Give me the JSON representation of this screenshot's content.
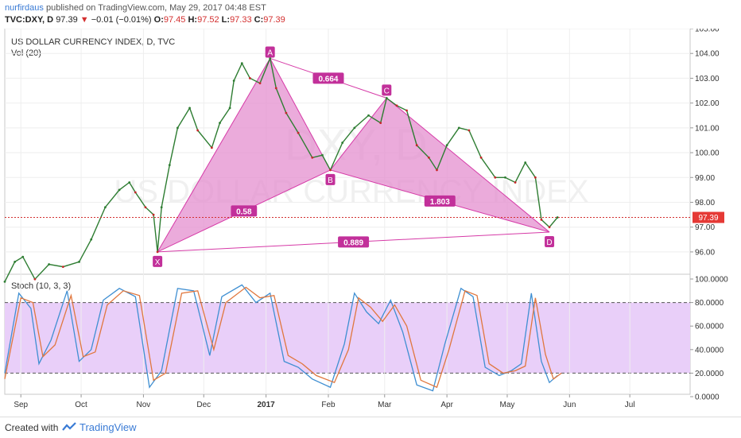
{
  "header": {
    "author": "nurfirdaus",
    "published": "published on TradingView.com, May 29, 2017 04:48 EST",
    "symbol": "TVC:DXY, D",
    "price": "97.39",
    "change": "−0.01 (−0.01%)",
    "open_label": "O:",
    "open": "97.45",
    "high_label": "H:",
    "high": "97.52",
    "low_label": "L:",
    "low": "97.33",
    "close_label": "C:",
    "close": "97.39"
  },
  "footer": {
    "created": "Created with",
    "brand": "TradingView"
  },
  "chart_data": {
    "type": "line",
    "title": "US DOLLAR CURRENCY INDEX, D, TVC",
    "volume_label": "Vol (20)",
    "watermark_symbol": "DXY, D",
    "watermark_name": "US DOLLAR CURRENCY INDEX",
    "current_price": "97.39",
    "price_axis": {
      "range": [
        95.1,
        105.0
      ],
      "ticks": [
        "105.00",
        "104.00",
        "103.00",
        "102.00",
        "101.00",
        "100.00",
        "99.00",
        "98.00",
        "97.00",
        "96.00"
      ]
    },
    "time_axis": {
      "start": "2016-08-24",
      "end": "2017-07-31",
      "ticks": [
        {
          "date": "2016-09-01",
          "label": "Sep"
        },
        {
          "date": "2016-10-01",
          "label": "Oct"
        },
        {
          "date": "2016-11-01",
          "label": "Nov"
        },
        {
          "date": "2016-12-01",
          "label": "Dec"
        },
        {
          "date": "2017-01-01",
          "label": "2017"
        },
        {
          "date": "2017-02-01",
          "label": "Feb"
        },
        {
          "date": "2017-03-01",
          "label": "Mar"
        },
        {
          "date": "2017-04-01",
          "label": "Apr"
        },
        {
          "date": "2017-05-01",
          "label": "May"
        },
        {
          "date": "2017-06-01",
          "label": "Jun"
        },
        {
          "date": "2017-07-01",
          "label": "Jul"
        }
      ]
    },
    "price_path": [
      {
        "date": "2016-08-24",
        "value": 94.8
      },
      {
        "date": "2016-08-29",
        "value": 95.6
      },
      {
        "date": "2016-09-02",
        "value": 95.8
      },
      {
        "date": "2016-09-08",
        "value": 94.9
      },
      {
        "date": "2016-09-15",
        "value": 95.5
      },
      {
        "date": "2016-09-22",
        "value": 95.4
      },
      {
        "date": "2016-09-30",
        "value": 95.6
      },
      {
        "date": "2016-10-06",
        "value": 96.5
      },
      {
        "date": "2016-10-13",
        "value": 97.8
      },
      {
        "date": "2016-10-20",
        "value": 98.5
      },
      {
        "date": "2016-10-25",
        "value": 98.8
      },
      {
        "date": "2016-10-28",
        "value": 98.4
      },
      {
        "date": "2016-11-02",
        "value": 97.8
      },
      {
        "date": "2016-11-06",
        "value": 97.5
      },
      {
        "date": "2016-11-08",
        "value": 96.0
      },
      {
        "date": "2016-11-10",
        "value": 97.8
      },
      {
        "date": "2016-11-14",
        "value": 99.5
      },
      {
        "date": "2016-11-18",
        "value": 101.0
      },
      {
        "date": "2016-11-24",
        "value": 101.8
      },
      {
        "date": "2016-11-28",
        "value": 100.9
      },
      {
        "date": "2016-12-05",
        "value": 100.2
      },
      {
        "date": "2016-12-09",
        "value": 101.2
      },
      {
        "date": "2016-12-14",
        "value": 101.8
      },
      {
        "date": "2016-12-16",
        "value": 102.9
      },
      {
        "date": "2016-12-20",
        "value": 103.6
      },
      {
        "date": "2016-12-24",
        "value": 103.0
      },
      {
        "date": "2016-12-29",
        "value": 102.8
      },
      {
        "date": "2017-01-03",
        "value": 103.8
      },
      {
        "date": "2017-01-06",
        "value": 102.6
      },
      {
        "date": "2017-01-11",
        "value": 101.6
      },
      {
        "date": "2017-01-17",
        "value": 100.8
      },
      {
        "date": "2017-01-24",
        "value": 99.8
      },
      {
        "date": "2017-01-29",
        "value": 99.9
      },
      {
        "date": "2017-02-02",
        "value": 99.3
      },
      {
        "date": "2017-02-08",
        "value": 100.4
      },
      {
        "date": "2017-02-14",
        "value": 101.0
      },
      {
        "date": "2017-02-21",
        "value": 101.5
      },
      {
        "date": "2017-02-27",
        "value": 101.2
      },
      {
        "date": "2017-03-02",
        "value": 102.2
      },
      {
        "date": "2017-03-07",
        "value": 101.9
      },
      {
        "date": "2017-03-12",
        "value": 101.7
      },
      {
        "date": "2017-03-17",
        "value": 100.3
      },
      {
        "date": "2017-03-23",
        "value": 99.8
      },
      {
        "date": "2017-03-27",
        "value": 99.3
      },
      {
        "date": "2017-04-01",
        "value": 100.3
      },
      {
        "date": "2017-04-07",
        "value": 101.0
      },
      {
        "date": "2017-04-12",
        "value": 100.9
      },
      {
        "date": "2017-04-18",
        "value": 99.8
      },
      {
        "date": "2017-04-25",
        "value": 99.0
      },
      {
        "date": "2017-04-30",
        "value": 99.0
      },
      {
        "date": "2017-05-05",
        "value": 98.8
      },
      {
        "date": "2017-05-10",
        "value": 99.6
      },
      {
        "date": "2017-05-15",
        "value": 99.0
      },
      {
        "date": "2017-05-18",
        "value": 97.3
      },
      {
        "date": "2017-05-22",
        "value": 97.0
      },
      {
        "date": "2017-05-26",
        "value": 97.39
      }
    ],
    "xabcd_pattern": {
      "points": [
        {
          "label": "X",
          "date": "2016-11-08",
          "value": 96.0
        },
        {
          "label": "A",
          "date": "2017-01-03",
          "value": 103.8
        },
        {
          "label": "B",
          "date": "2017-02-02",
          "value": 99.3
        },
        {
          "label": "C",
          "date": "2017-03-02",
          "value": 102.2
        },
        {
          "label": "D",
          "date": "2017-05-22",
          "value": 96.8
        }
      ],
      "ratios": [
        {
          "between": [
            "X",
            "B"
          ],
          "value": "0.58"
        },
        {
          "between": [
            "A",
            "C"
          ],
          "value": "0.664"
        },
        {
          "between": [
            "B",
            "D"
          ],
          "value": "1.803"
        },
        {
          "between": [
            "X",
            "D"
          ],
          "value": "0.889"
        }
      ]
    },
    "stochastic": {
      "label": "Stoch (10, 3, 3)",
      "range": [
        0,
        100
      ],
      "upper_band": 80,
      "lower_band": 20,
      "ticks": [
        "100.0000",
        "80.0000",
        "60.0000",
        "40.0000",
        "20.0000",
        "0.0000"
      ],
      "series": [
        {
          "key": "k",
          "color": "#3f8fd2",
          "values": [
            {
              "date": "2016-08-24",
              "value": 20
            },
            {
              "date": "2016-08-31",
              "value": 88
            },
            {
              "date": "2016-09-06",
              "value": 75
            },
            {
              "date": "2016-09-10",
              "value": 28
            },
            {
              "date": "2016-09-16",
              "value": 48
            },
            {
              "date": "2016-09-24",
              "value": 90
            },
            {
              "date": "2016-09-30",
              "value": 30
            },
            {
              "date": "2016-10-06",
              "value": 40
            },
            {
              "date": "2016-10-12",
              "value": 82
            },
            {
              "date": "2016-10-20",
              "value": 92
            },
            {
              "date": "2016-10-28",
              "value": 85
            },
            {
              "date": "2016-11-04",
              "value": 8
            },
            {
              "date": "2016-11-10",
              "value": 22
            },
            {
              "date": "2016-11-18",
              "value": 92
            },
            {
              "date": "2016-11-26",
              "value": 90
            },
            {
              "date": "2016-12-04",
              "value": 35
            },
            {
              "date": "2016-12-10",
              "value": 85
            },
            {
              "date": "2016-12-20",
              "value": 95
            },
            {
              "date": "2016-12-27",
              "value": 80
            },
            {
              "date": "2017-01-03",
              "value": 88
            },
            {
              "date": "2017-01-10",
              "value": 30
            },
            {
              "date": "2017-01-17",
              "value": 25
            },
            {
              "date": "2017-01-24",
              "value": 15
            },
            {
              "date": "2017-02-02",
              "value": 8
            },
            {
              "date": "2017-02-09",
              "value": 45
            },
            {
              "date": "2017-02-14",
              "value": 88
            },
            {
              "date": "2017-02-20",
              "value": 72
            },
            {
              "date": "2017-02-26",
              "value": 62
            },
            {
              "date": "2017-03-04",
              "value": 82
            },
            {
              "date": "2017-03-10",
              "value": 55
            },
            {
              "date": "2017-03-17",
              "value": 10
            },
            {
              "date": "2017-03-25",
              "value": 5
            },
            {
              "date": "2017-03-31",
              "value": 45
            },
            {
              "date": "2017-04-08",
              "value": 92
            },
            {
              "date": "2017-04-14",
              "value": 85
            },
            {
              "date": "2017-04-20",
              "value": 25
            },
            {
              "date": "2017-04-27",
              "value": 18
            },
            {
              "date": "2017-05-03",
              "value": 22
            },
            {
              "date": "2017-05-08",
              "value": 28
            },
            {
              "date": "2017-05-13",
              "value": 88
            },
            {
              "date": "2017-05-18",
              "value": 30
            },
            {
              "date": "2017-05-22",
              "value": 12
            },
            {
              "date": "2017-05-26",
              "value": 18
            }
          ]
        },
        {
          "key": "d",
          "color": "#e0773e",
          "values": [
            {
              "date": "2016-08-24",
              "value": 15
            },
            {
              "date": "2016-09-01",
              "value": 84
            },
            {
              "date": "2016-09-07",
              "value": 80
            },
            {
              "date": "2016-09-12",
              "value": 34
            },
            {
              "date": "2016-09-18",
              "value": 44
            },
            {
              "date": "2016-09-26",
              "value": 86
            },
            {
              "date": "2016-10-02",
              "value": 34
            },
            {
              "date": "2016-10-08",
              "value": 38
            },
            {
              "date": "2016-10-14",
              "value": 78
            },
            {
              "date": "2016-10-22",
              "value": 90
            },
            {
              "date": "2016-10-30",
              "value": 86
            },
            {
              "date": "2016-11-06",
              "value": 14
            },
            {
              "date": "2016-11-12",
              "value": 20
            },
            {
              "date": "2016-11-20",
              "value": 88
            },
            {
              "date": "2016-11-28",
              "value": 90
            },
            {
              "date": "2016-12-06",
              "value": 40
            },
            {
              "date": "2016-12-12",
              "value": 80
            },
            {
              "date": "2016-12-22",
              "value": 93
            },
            {
              "date": "2016-12-29",
              "value": 84
            },
            {
              "date": "2017-01-05",
              "value": 86
            },
            {
              "date": "2017-01-12",
              "value": 35
            },
            {
              "date": "2017-01-19",
              "value": 28
            },
            {
              "date": "2017-01-26",
              "value": 18
            },
            {
              "date": "2017-02-04",
              "value": 12
            },
            {
              "date": "2017-02-11",
              "value": 40
            },
            {
              "date": "2017-02-16",
              "value": 84
            },
            {
              "date": "2017-02-22",
              "value": 76
            },
            {
              "date": "2017-02-28",
              "value": 64
            },
            {
              "date": "2017-03-06",
              "value": 78
            },
            {
              "date": "2017-03-12",
              "value": 60
            },
            {
              "date": "2017-03-19",
              "value": 14
            },
            {
              "date": "2017-03-27",
              "value": 8
            },
            {
              "date": "2017-04-02",
              "value": 40
            },
            {
              "date": "2017-04-10",
              "value": 90
            },
            {
              "date": "2017-04-16",
              "value": 86
            },
            {
              "date": "2017-04-22",
              "value": 28
            },
            {
              "date": "2017-04-29",
              "value": 20
            },
            {
              "date": "2017-05-05",
              "value": 22
            },
            {
              "date": "2017-05-10",
              "value": 26
            },
            {
              "date": "2017-05-15",
              "value": 84
            },
            {
              "date": "2017-05-20",
              "value": 36
            },
            {
              "date": "2017-05-24",
              "value": 15
            },
            {
              "date": "2017-05-28",
              "value": 20
            }
          ]
        }
      ]
    },
    "colors": {
      "pattern_fill": "#e48fcf",
      "pattern_stroke": "#d63aa7",
      "label_bg": "#c2309a",
      "stoch_band": "#e9cff9",
      "price_line": "#d32f2f"
    }
  }
}
